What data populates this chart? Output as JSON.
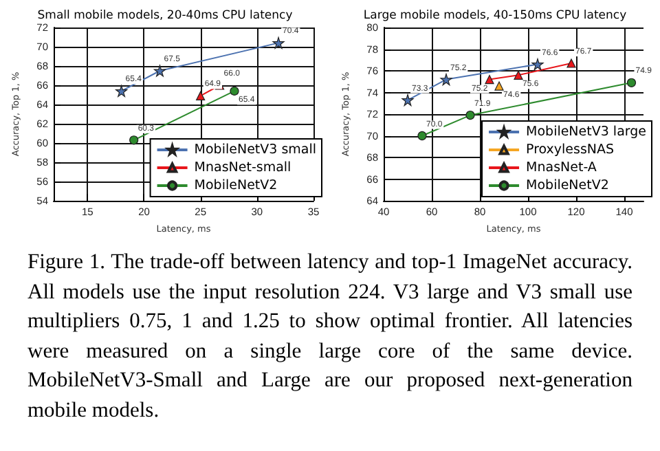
{
  "chart_data": [
    {
      "type": "line",
      "title": "Small mobile models, 20-40ms CPU latency",
      "xlabel": "Latency, ms",
      "ylabel": "Accuracy, Top 1, %",
      "xlim": [
        12,
        35
      ],
      "xticks": [
        15,
        20,
        25,
        30,
        35
      ],
      "ylim": [
        54,
        72
      ],
      "yticks": [
        54,
        56,
        58,
        60,
        62,
        64,
        66,
        68,
        70,
        72
      ],
      "grid": true,
      "legend": "bottom right",
      "series": [
        {
          "name": "MobileNetV3 small",
          "color": "#4c72b0",
          "marker": "star",
          "x": [
            18.0,
            21.4,
            31.9
          ],
          "values": [
            65.4,
            67.5,
            70.4
          ],
          "value_labels": [
            "65.4",
            "67.5",
            "70.4"
          ]
        },
        {
          "name": "MnasNet-small",
          "color": "#e8161b",
          "marker": "triangle",
          "x": [
            25.0,
            26.7
          ],
          "values": [
            64.9,
            66.0
          ],
          "value_labels": [
            "64.9",
            "66.0"
          ]
        },
        {
          "name": "MobileNetV2",
          "color": "#2e8b2e",
          "marker": "circle",
          "x": [
            19.1,
            28.0
          ],
          "values": [
            60.3,
            65.4
          ],
          "value_labels": [
            "60.3",
            "65.4"
          ]
        }
      ]
    },
    {
      "type": "line",
      "title": "Large mobile models, 40-150ms CPU latency",
      "xlabel": "Latency, ms",
      "ylabel": "Accuracy, Top 1, %",
      "xlim": [
        40,
        148
      ],
      "xticks": [
        40,
        60,
        80,
        100,
        120,
        140
      ],
      "ylim": [
        64,
        80
      ],
      "yticks": [
        64,
        66,
        68,
        70,
        72,
        74,
        76,
        78,
        80
      ],
      "grid": true,
      "legend": "bottom right",
      "series": [
        {
          "name": "MobileNetV3 large",
          "color": "#4c72b0",
          "marker": "star",
          "x": [
            50,
            66,
            104
          ],
          "values": [
            73.3,
            75.2,
            76.6
          ],
          "value_labels": [
            "73.3",
            "75.2",
            "76.6"
          ]
        },
        {
          "name": "ProxylessNAS",
          "color": "#f5a623",
          "marker": "triangle",
          "x": [
            88
          ],
          "values": [
            74.6
          ],
          "value_labels": [
            "74.6"
          ]
        },
        {
          "name": "MnasNet-A",
          "color": "#e8161b",
          "marker": "triangle",
          "x": [
            84,
            96,
            118
          ],
          "values": [
            75.2,
            75.6,
            76.7
          ],
          "value_labels": [
            "75.2",
            "75.6",
            "76.7"
          ]
        },
        {
          "name": "MobileNetV2",
          "color": "#2e8b2e",
          "marker": "circle",
          "x": [
            56,
            76,
            143
          ],
          "values": [
            70.0,
            71.9,
            74.9
          ],
          "value_labels": [
            "70.0",
            "71.9",
            "74.9"
          ]
        }
      ]
    },
    {
      "type": "other",
      "annotations": [
        "Figure 1. The trade-off between latency and top-1 ImageNet accuracy. All models use the input resolution 224. V3 large and V3 small use multipliers 0.75, 1 and 1.25 to show optimal frontier. All latencies were measured on a single large core of the same device. MobileNetV3-Small and Large are our proposed next-generation mobile models."
      ]
    }
  ]
}
